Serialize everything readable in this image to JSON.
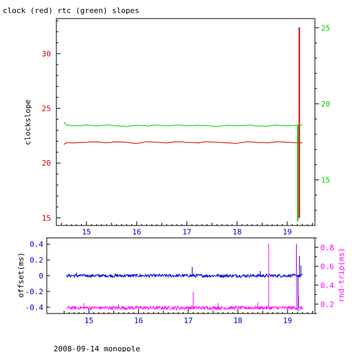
{
  "page": {
    "title": "clock (red) rtc (green) slopes",
    "footer": "2008-09-14 monopole"
  },
  "colors": {
    "clock": "#cc0000",
    "rtc": "#00cc00",
    "offset": "#0000cc",
    "rndtrip": "#ff00ff",
    "frame": "#000000",
    "xtick": "#0000cc"
  },
  "chart_data": [
    {
      "type": "line",
      "title": "clock (red) rtc (green) slopes",
      "ylabel": "clockslope",
      "xlim": [
        14.4,
        19.55
      ],
      "ylim": [
        14.3,
        33.2
      ],
      "y2lim": [
        12.0,
        25.6
      ],
      "xticks": [
        "15",
        "16",
        "17",
        "18",
        "19"
      ],
      "yticks": [
        "15",
        "20",
        "25",
        "30"
      ],
      "y2ticks": [
        "15",
        "20",
        "25"
      ],
      "series": [
        {
          "name": "clock",
          "axis": "left",
          "x": [
            14.55,
            14.6,
            14.8,
            15.0,
            15.2,
            15.4,
            15.6,
            15.8,
            16.0,
            16.2,
            16.4,
            16.6,
            16.8,
            17.0,
            17.2,
            17.4,
            17.6,
            17.8,
            18.0,
            18.2,
            18.4,
            18.6,
            18.8,
            19.0,
            19.2,
            19.3
          ],
          "y": [
            21.7,
            21.85,
            21.85,
            21.9,
            21.95,
            21.85,
            21.95,
            21.9,
            21.8,
            21.95,
            21.9,
            21.85,
            21.95,
            21.9,
            21.85,
            21.95,
            21.9,
            21.85,
            21.8,
            21.95,
            21.9,
            21.85,
            21.95,
            21.9,
            21.85,
            21.85
          ],
          "spike": {
            "x": 19.24,
            "ymin": 15.0,
            "ymax": 32.4
          }
        },
        {
          "name": "rtc",
          "axis": "right",
          "x": [
            14.55,
            14.6,
            14.8,
            15.0,
            15.2,
            15.4,
            15.6,
            15.8,
            16.0,
            16.2,
            16.4,
            16.6,
            16.8,
            17.0,
            17.2,
            17.4,
            17.6,
            17.8,
            18.0,
            18.2,
            18.4,
            18.6,
            18.8,
            19.0,
            19.2,
            19.3
          ],
          "y": [
            18.8,
            18.6,
            18.55,
            18.6,
            18.55,
            18.6,
            18.55,
            18.5,
            18.6,
            18.55,
            18.6,
            18.55,
            18.6,
            18.55,
            18.6,
            18.55,
            18.5,
            18.6,
            18.55,
            18.6,
            18.55,
            18.55,
            18.6,
            18.55,
            18.6,
            18.6
          ],
          "spike": {
            "x": 19.21,
            "ymin": 12.3,
            "ymax": 18.6
          }
        }
      ]
    },
    {
      "type": "line",
      "ylabel": "offset(ms)",
      "y2label": "rnd-trip(ms)",
      "xlim": [
        14.4,
        19.55
      ],
      "ylim": [
        -0.48,
        0.48
      ],
      "y2lim": [
        0.1,
        0.9
      ],
      "xticks": [
        "15",
        "16",
        "17",
        "18",
        "19"
      ],
      "yticks": [
        "-0.4",
        "-0.2",
        "0",
        "0.2",
        "0.4"
      ],
      "y2ticks": [
        "0.2",
        "0.4",
        "0.6",
        "0.8"
      ],
      "series": [
        {
          "name": "offset",
          "axis": "left",
          "baseline": 0.0,
          "noise": 0.02,
          "xrange": [
            14.55,
            19.3
          ],
          "spikes": [
            {
              "x": 14.75,
              "y": 0.04
            },
            {
              "x": 17.08,
              "y": 0.11
            },
            {
              "x": 18.45,
              "y": 0.06
            },
            {
              "x": 19.18,
              "y": 0.39
            },
            {
              "x": 19.21,
              "y": -0.45
            },
            {
              "x": 19.24,
              "y": 0.25
            },
            {
              "x": 19.27,
              "y": 0.13
            }
          ]
        },
        {
          "name": "rnd-trip",
          "axis": "right",
          "baseline": 0.16,
          "noise": 0.018,
          "xrange": [
            14.55,
            19.3
          ],
          "spikes": [
            {
              "x": 14.9,
              "y": 0.21
            },
            {
              "x": 15.6,
              "y": 0.2
            },
            {
              "x": 17.1,
              "y": 0.33
            },
            {
              "x": 17.6,
              "y": 0.21
            },
            {
              "x": 18.4,
              "y": 0.22
            },
            {
              "x": 18.62,
              "y": 0.84
            },
            {
              "x": 19.18,
              "y": 0.84
            },
            {
              "x": 19.22,
              "y": 0.28
            }
          ]
        }
      ]
    }
  ]
}
